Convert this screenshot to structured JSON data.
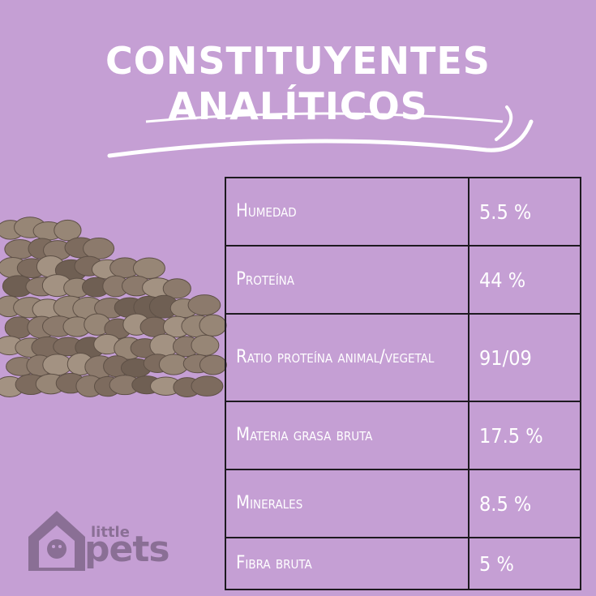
{
  "title": {
    "line1": "CONSTITUYENTES",
    "line2": "ANALÍTICOS"
  },
  "table": {
    "rows": [
      {
        "name": "Humedad",
        "value": "5.5 %"
      },
      {
        "name": "Proteína",
        "value": "44 %"
      },
      {
        "name": "Ratio proteína animal/vegetal",
        "value": "91/09"
      },
      {
        "name": "Materia grasa bruta",
        "value": "17.5 %"
      },
      {
        "name": "Minerales",
        "value": "8.5 %"
      },
      {
        "name": "Fibra bruta",
        "value": "5 %"
      }
    ]
  },
  "logo": {
    "small": "little",
    "big": "pets"
  },
  "colors": {
    "background": "#c59fd4",
    "border": "#1e1a20",
    "text": "#ffffff",
    "logo": "#8a6f95",
    "kibble": "#8c7a6c"
  }
}
